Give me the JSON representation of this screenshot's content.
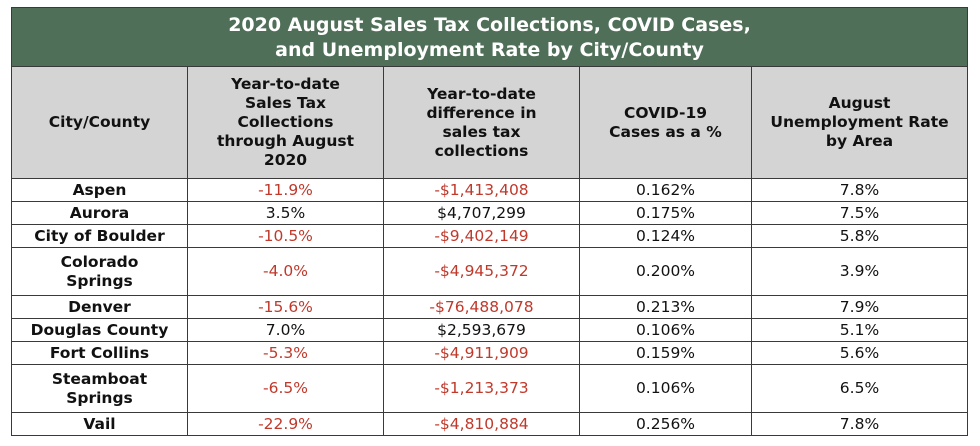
{
  "title": {
    "line1": "2020 August Sales Tax Collections, COVID Cases,",
    "line2": "and Unemployment Rate by City/County"
  },
  "headers": [
    "City/County",
    "Year-to-date Sales Tax Collections through August 2020",
    "Year-to-date difference in sales tax collections",
    "COVID-19 Cases as a %",
    "August Unemployment Rate by Area"
  ],
  "rows": [
    {
      "city": "Aspen",
      "ytd_pct": "-11.9%",
      "ytd_diff": "-$1,413,408",
      "covid": "0.162%",
      "unemployment": "7.8%"
    },
    {
      "city": "Aurora",
      "ytd_pct": "3.5%",
      "ytd_diff": "$4,707,299",
      "covid": "0.175%",
      "unemployment": "7.5%"
    },
    {
      "city": "City of Boulder",
      "ytd_pct": "-10.5%",
      "ytd_diff": "-$9,402,149",
      "covid": "0.124%",
      "unemployment": "5.8%"
    },
    {
      "city": "Colorado Springs",
      "ytd_pct": "-4.0%",
      "ytd_diff": "-$4,945,372",
      "covid": "0.200%",
      "unemployment": "3.9%"
    },
    {
      "city": "Denver",
      "ytd_pct": "-15.6%",
      "ytd_diff": "-$76,488,078",
      "covid": "0.213%",
      "unemployment": "7.9%"
    },
    {
      "city": "Douglas County",
      "ytd_pct": "7.0%",
      "ytd_diff": "$2,593,679",
      "covid": "0.106%",
      "unemployment": "5.1%"
    },
    {
      "city": "Fort Collins",
      "ytd_pct": "-5.3%",
      "ytd_diff": "-$4,911,909",
      "covid": "0.159%",
      "unemployment": "5.6%"
    },
    {
      "city": "Steamboat Springs",
      "ytd_pct": "-6.5%",
      "ytd_diff": "-$1,213,373",
      "covid": "0.106%",
      "unemployment": "6.5%"
    },
    {
      "city": "Vail",
      "ytd_pct": "-22.9%",
      "ytd_diff": "-$4,810,884",
      "covid": "0.256%",
      "unemployment": "7.8%"
    }
  ],
  "colors": {
    "title_background": "#4f6f58",
    "header_background": "#d4d4d4",
    "negative_text": "#c0392b"
  }
}
